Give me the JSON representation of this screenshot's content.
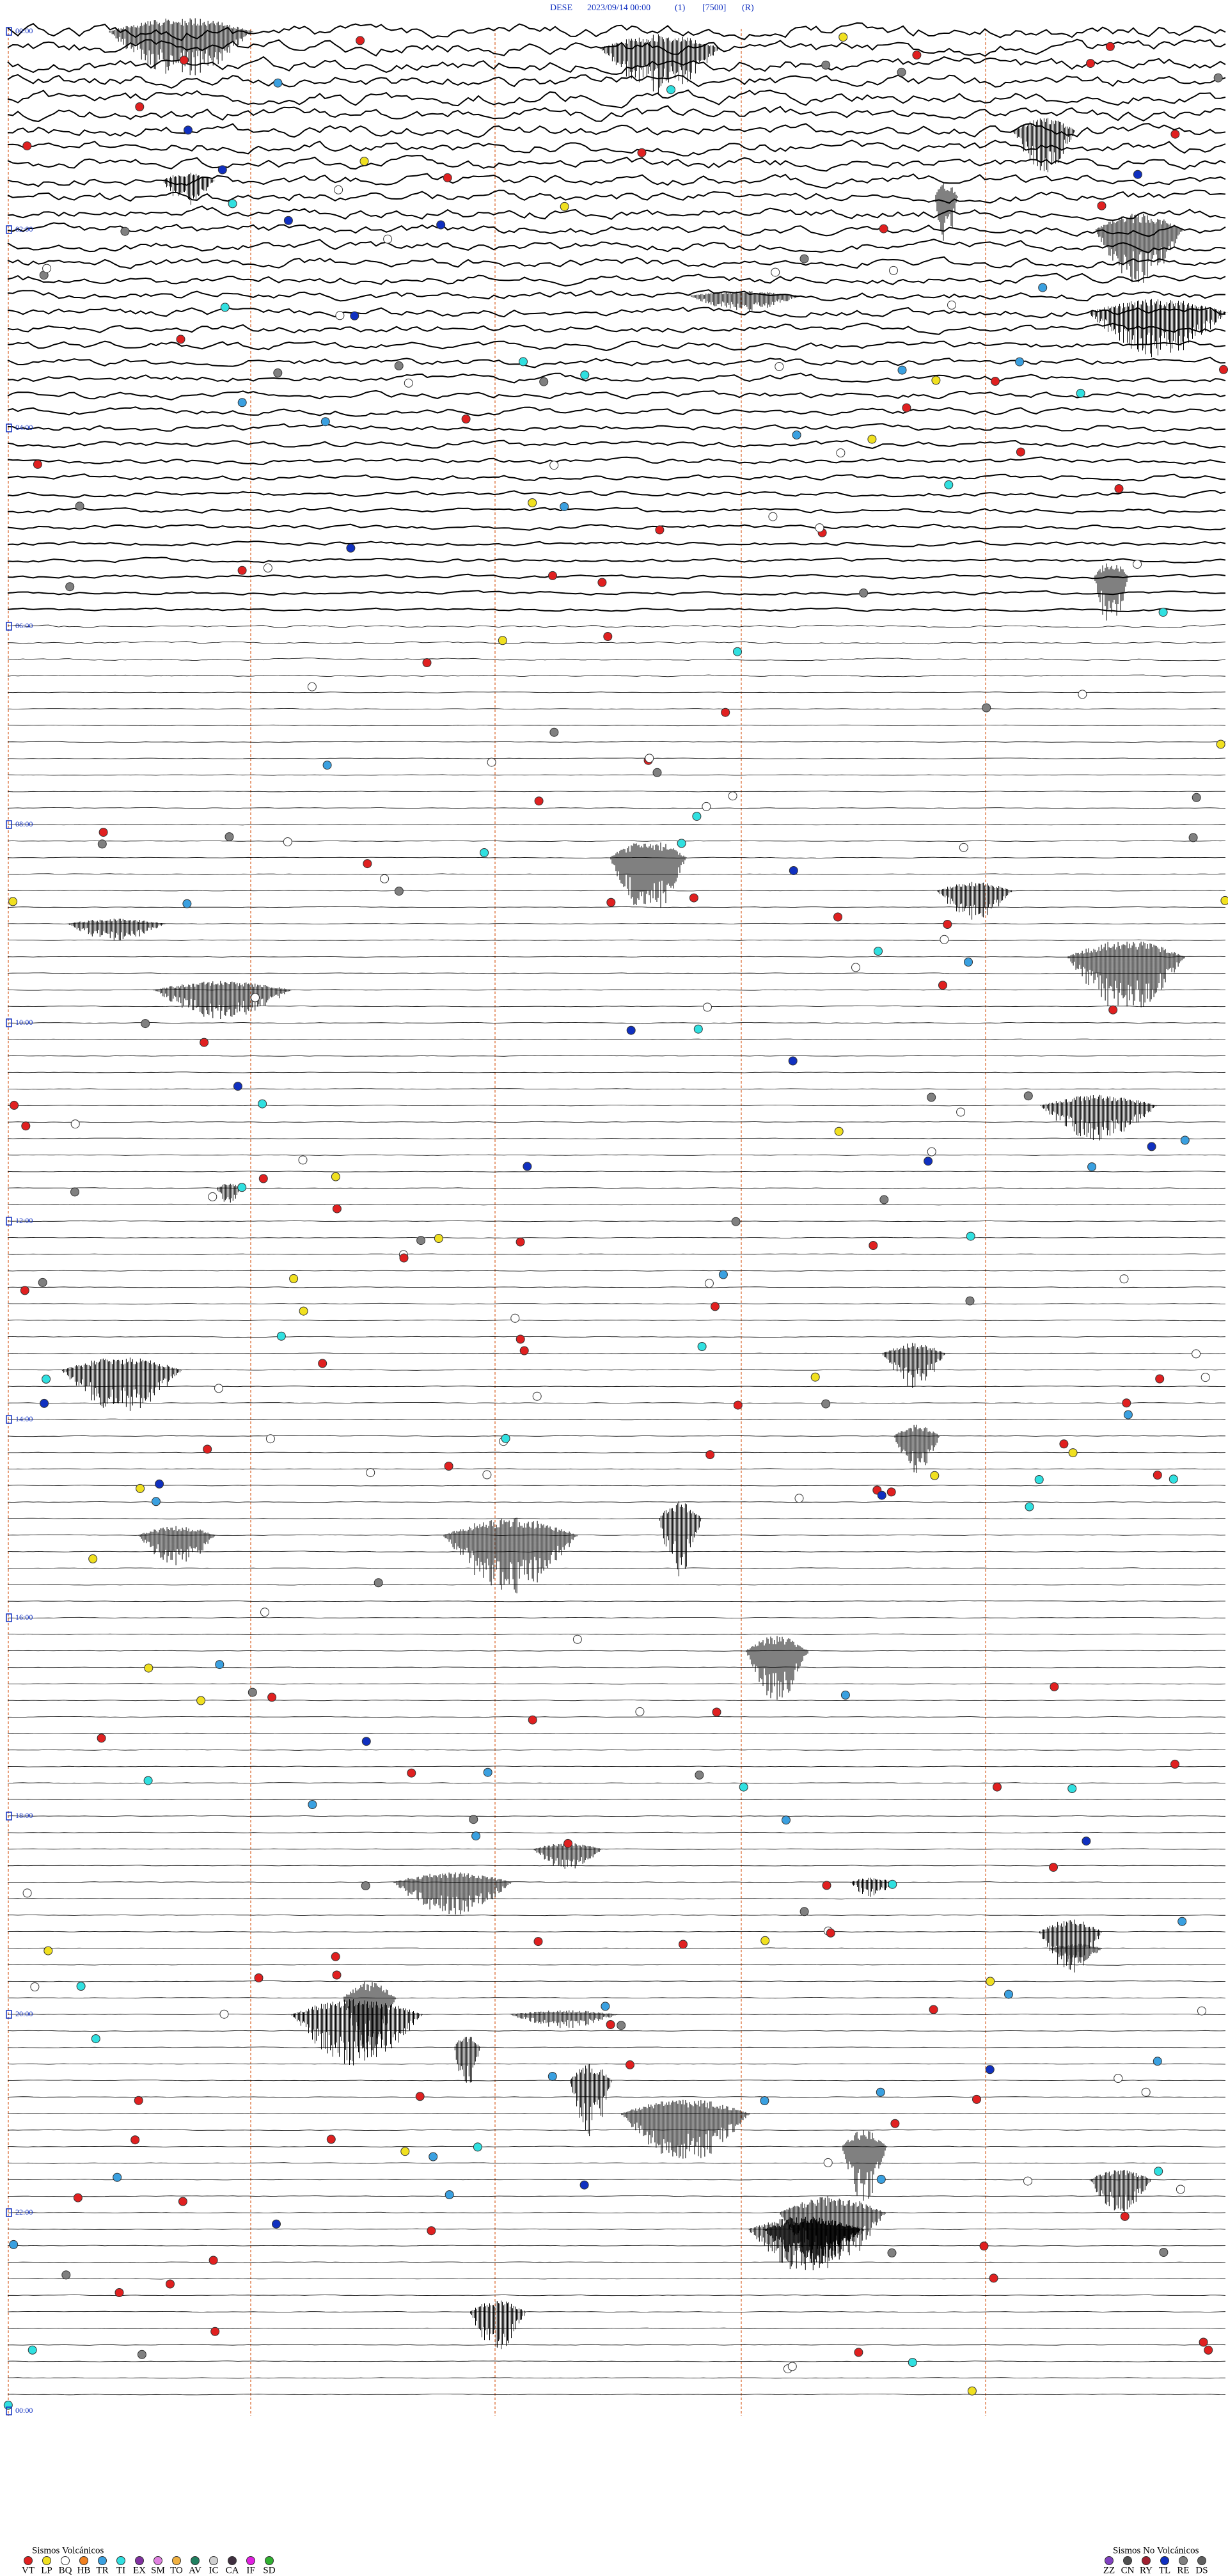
{
  "header": {
    "station": "DESE",
    "datetime": "2023/09/14 00:00",
    "channel": "(1)",
    "scale": "[7500]",
    "mode": "(R)"
  },
  "time_labels": [
    "00:00",
    "02:00",
    "04:00",
    "06:00",
    "08:00",
    "10:00",
    "12:00",
    "14:00",
    "16:00",
    "18:00",
    "20:00",
    "22:00",
    "00:00"
  ],
  "legend": {
    "volcanic": {
      "title": "Sismos Volcánicos",
      "items": [
        {
          "code": "VT",
          "color": "#e02020"
        },
        {
          "code": "LP",
          "color": "#f0e020"
        },
        {
          "code": "BQ",
          "color": "#ffffff"
        },
        {
          "code": "HB",
          "color": "#f08020"
        },
        {
          "code": "TR",
          "color": "#3aa0e0"
        },
        {
          "code": "TI",
          "color": "#30e0e0"
        },
        {
          "code": "EX",
          "color": "#8030a0"
        },
        {
          "code": "SM",
          "color": "#e080e0"
        },
        {
          "code": "TO",
          "color": "#f0b040"
        },
        {
          "code": "AV",
          "color": "#208060"
        },
        {
          "code": "IC",
          "color": "#d0d0d0"
        },
        {
          "code": "CA",
          "color": "#403040"
        },
        {
          "code": "IF",
          "color": "#e020e0"
        },
        {
          "code": "SD",
          "color": "#30b030"
        }
      ]
    },
    "non_volcanic": {
      "title": "Sismos No Volcánicos",
      "items": [
        {
          "code": "ZZ",
          "color": "#8040c0"
        },
        {
          "code": "CN",
          "color": "#505050"
        },
        {
          "code": "RY",
          "color": "#a02030"
        },
        {
          "code": "TL",
          "color": "#1030c0"
        },
        {
          "code": "RE",
          "color": "#808080"
        },
        {
          "code": "DS",
          "color": "#606060"
        }
      ]
    }
  }
}
